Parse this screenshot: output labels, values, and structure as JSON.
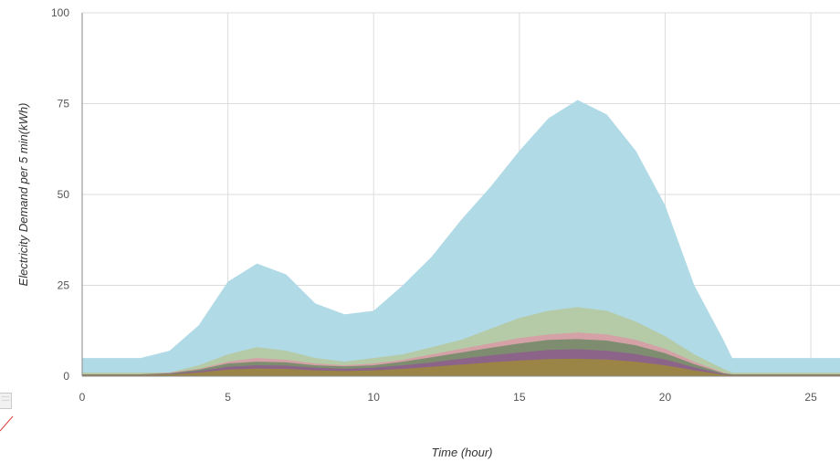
{
  "chart_data": {
    "type": "area",
    "stacked": false,
    "xlabel": "Time (hour)",
    "ylabel": "Electricity Demand per 5 min(kWh)",
    "xlim": [
      0,
      26
    ],
    "ylim": [
      0,
      100
    ],
    "x_ticks": [
      0,
      5,
      10,
      15,
      20,
      25
    ],
    "y_ticks": [
      0,
      25,
      50,
      75,
      100
    ],
    "grid": true,
    "x": [
      0,
      1,
      2,
      3,
      4,
      5,
      6,
      7,
      8,
      9,
      10,
      11,
      12,
      13,
      14,
      15,
      16,
      17,
      18,
      19,
      20,
      21,
      22,
      22.3,
      23,
      24,
      25,
      26
    ],
    "series": [
      {
        "color": "#add8e6",
        "values": [
          5,
          5,
          5,
          7,
          14,
          26,
          31,
          28,
          20,
          17,
          18,
          25,
          33,
          43,
          52,
          62,
          71,
          76,
          72,
          62,
          47,
          25,
          10,
          5,
          5,
          5,
          5,
          5
        ]
      },
      {
        "color": "#b6c79a",
        "values": [
          1,
          1,
          1,
          1,
          3,
          6,
          8,
          7,
          5,
          4,
          5,
          6,
          8,
          10,
          13,
          16,
          18,
          19,
          18,
          15,
          11,
          6,
          2,
          1,
          1,
          1,
          1,
          1
        ]
      },
      {
        "color": "#d99aa6",
        "values": [
          0.5,
          0.5,
          0.5,
          1,
          2,
          4,
          5,
          4.5,
          3.5,
          3,
          3.5,
          4.5,
          6,
          7.5,
          9,
          10.5,
          11.5,
          12,
          11.5,
          10,
          7.5,
          4,
          1,
          0.5,
          0.5,
          0.5,
          0.5,
          0.5
        ]
      },
      {
        "color": "#6f8a66",
        "values": [
          0.5,
          0.5,
          0.5,
          0.8,
          1.8,
          3.5,
          4,
          3.8,
          3,
          2.7,
          3,
          4,
          5.2,
          6.5,
          7.8,
          9,
          10,
          10.2,
          9.8,
          8.5,
          6.3,
          3.3,
          0.8,
          0.5,
          0.5,
          0.5,
          0.5,
          0.5
        ]
      },
      {
        "color": "#8e5d8e",
        "values": [
          0.4,
          0.4,
          0.4,
          0.6,
          1.4,
          2.6,
          3,
          2.9,
          2.3,
          2,
          2.3,
          3,
          3.8,
          4.8,
          5.7,
          6.5,
          7.2,
          7.4,
          7,
          6.1,
          4.6,
          2.4,
          0.6,
          0.4,
          0.4,
          0.4,
          0.4,
          0.4
        ]
      },
      {
        "color": "#9c8a3a",
        "values": [
          0.3,
          0.3,
          0.3,
          0.5,
          1,
          1.8,
          2.1,
          2,
          1.6,
          1.4,
          1.6,
          2,
          2.6,
          3.2,
          3.8,
          4.3,
          4.7,
          4.8,
          4.6,
          4,
          3,
          1.6,
          0.4,
          0.3,
          0.3,
          0.3,
          0.3,
          0.3
        ]
      }
    ]
  }
}
